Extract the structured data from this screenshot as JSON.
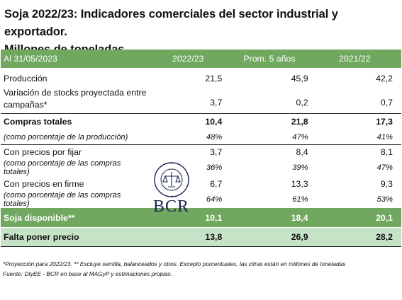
{
  "title": {
    "line1": "Soja 2022/23: Indicadores comerciales del sector industrial y exportador.",
    "line2": "Millones de toneladas"
  },
  "table": {
    "headers": [
      "Al 31/05/2023",
      "2022/23",
      "Prom. 5 años",
      "2021/22"
    ],
    "rows": [
      {
        "label": "Producción",
        "v1": "21,5",
        "v2": "45,9",
        "v3": "42,2"
      },
      {
        "label": "Variación de stocks proyectada entre campañas*",
        "v1": "3,7",
        "v2": "0,2",
        "v3": "0,7"
      },
      {
        "label": "Compras totales",
        "v1": "10,4",
        "v2": "21,8",
        "v3": "17,3"
      },
      {
        "label": "(como porcentaje de la producción)",
        "v1": "48%",
        "v2": "47%",
        "v3": "41%"
      },
      {
        "label": "Con precios por fijar",
        "v1": "3,7",
        "v2": "8,4",
        "v3": "8,1"
      },
      {
        "label": "(como porcentaje de las compras totales)",
        "v1": "36%",
        "v2": "39%",
        "v3": "47%"
      },
      {
        "label": "Con precios en firme",
        "v1": "6,7",
        "v2": "13,3",
        "v3": "9,3"
      },
      {
        "label": "(como porcentaje de las compras totales)",
        "v1": "64%",
        "v2": "61%",
        "v3": "53%"
      },
      {
        "label": "Soja disponible**",
        "v1": "10,1",
        "v2": "18,4",
        "v3": "20,1"
      },
      {
        "label": "Falta poner precio",
        "v1": "13,8",
        "v2": "26,9",
        "v3": "28,2"
      }
    ]
  },
  "footnotes": {
    "line1": "*Proyección para 2022/23. ** Excluye semilla, balanceados y otros. Excepto porcentuales, las cifras están en millones de toneladas",
    "line2": "Fuente: DIyEE - BCR en base al MAGyP y estimaciones propias."
  },
  "watermark": {
    "seal_text": "BOLSA DE COMERCIO DE ROSARIO",
    "logo_text": "BCR"
  },
  "colors": {
    "header_green": "#70a860",
    "light_green": "#c7e3c7",
    "logo_navy": "#1a2550"
  }
}
